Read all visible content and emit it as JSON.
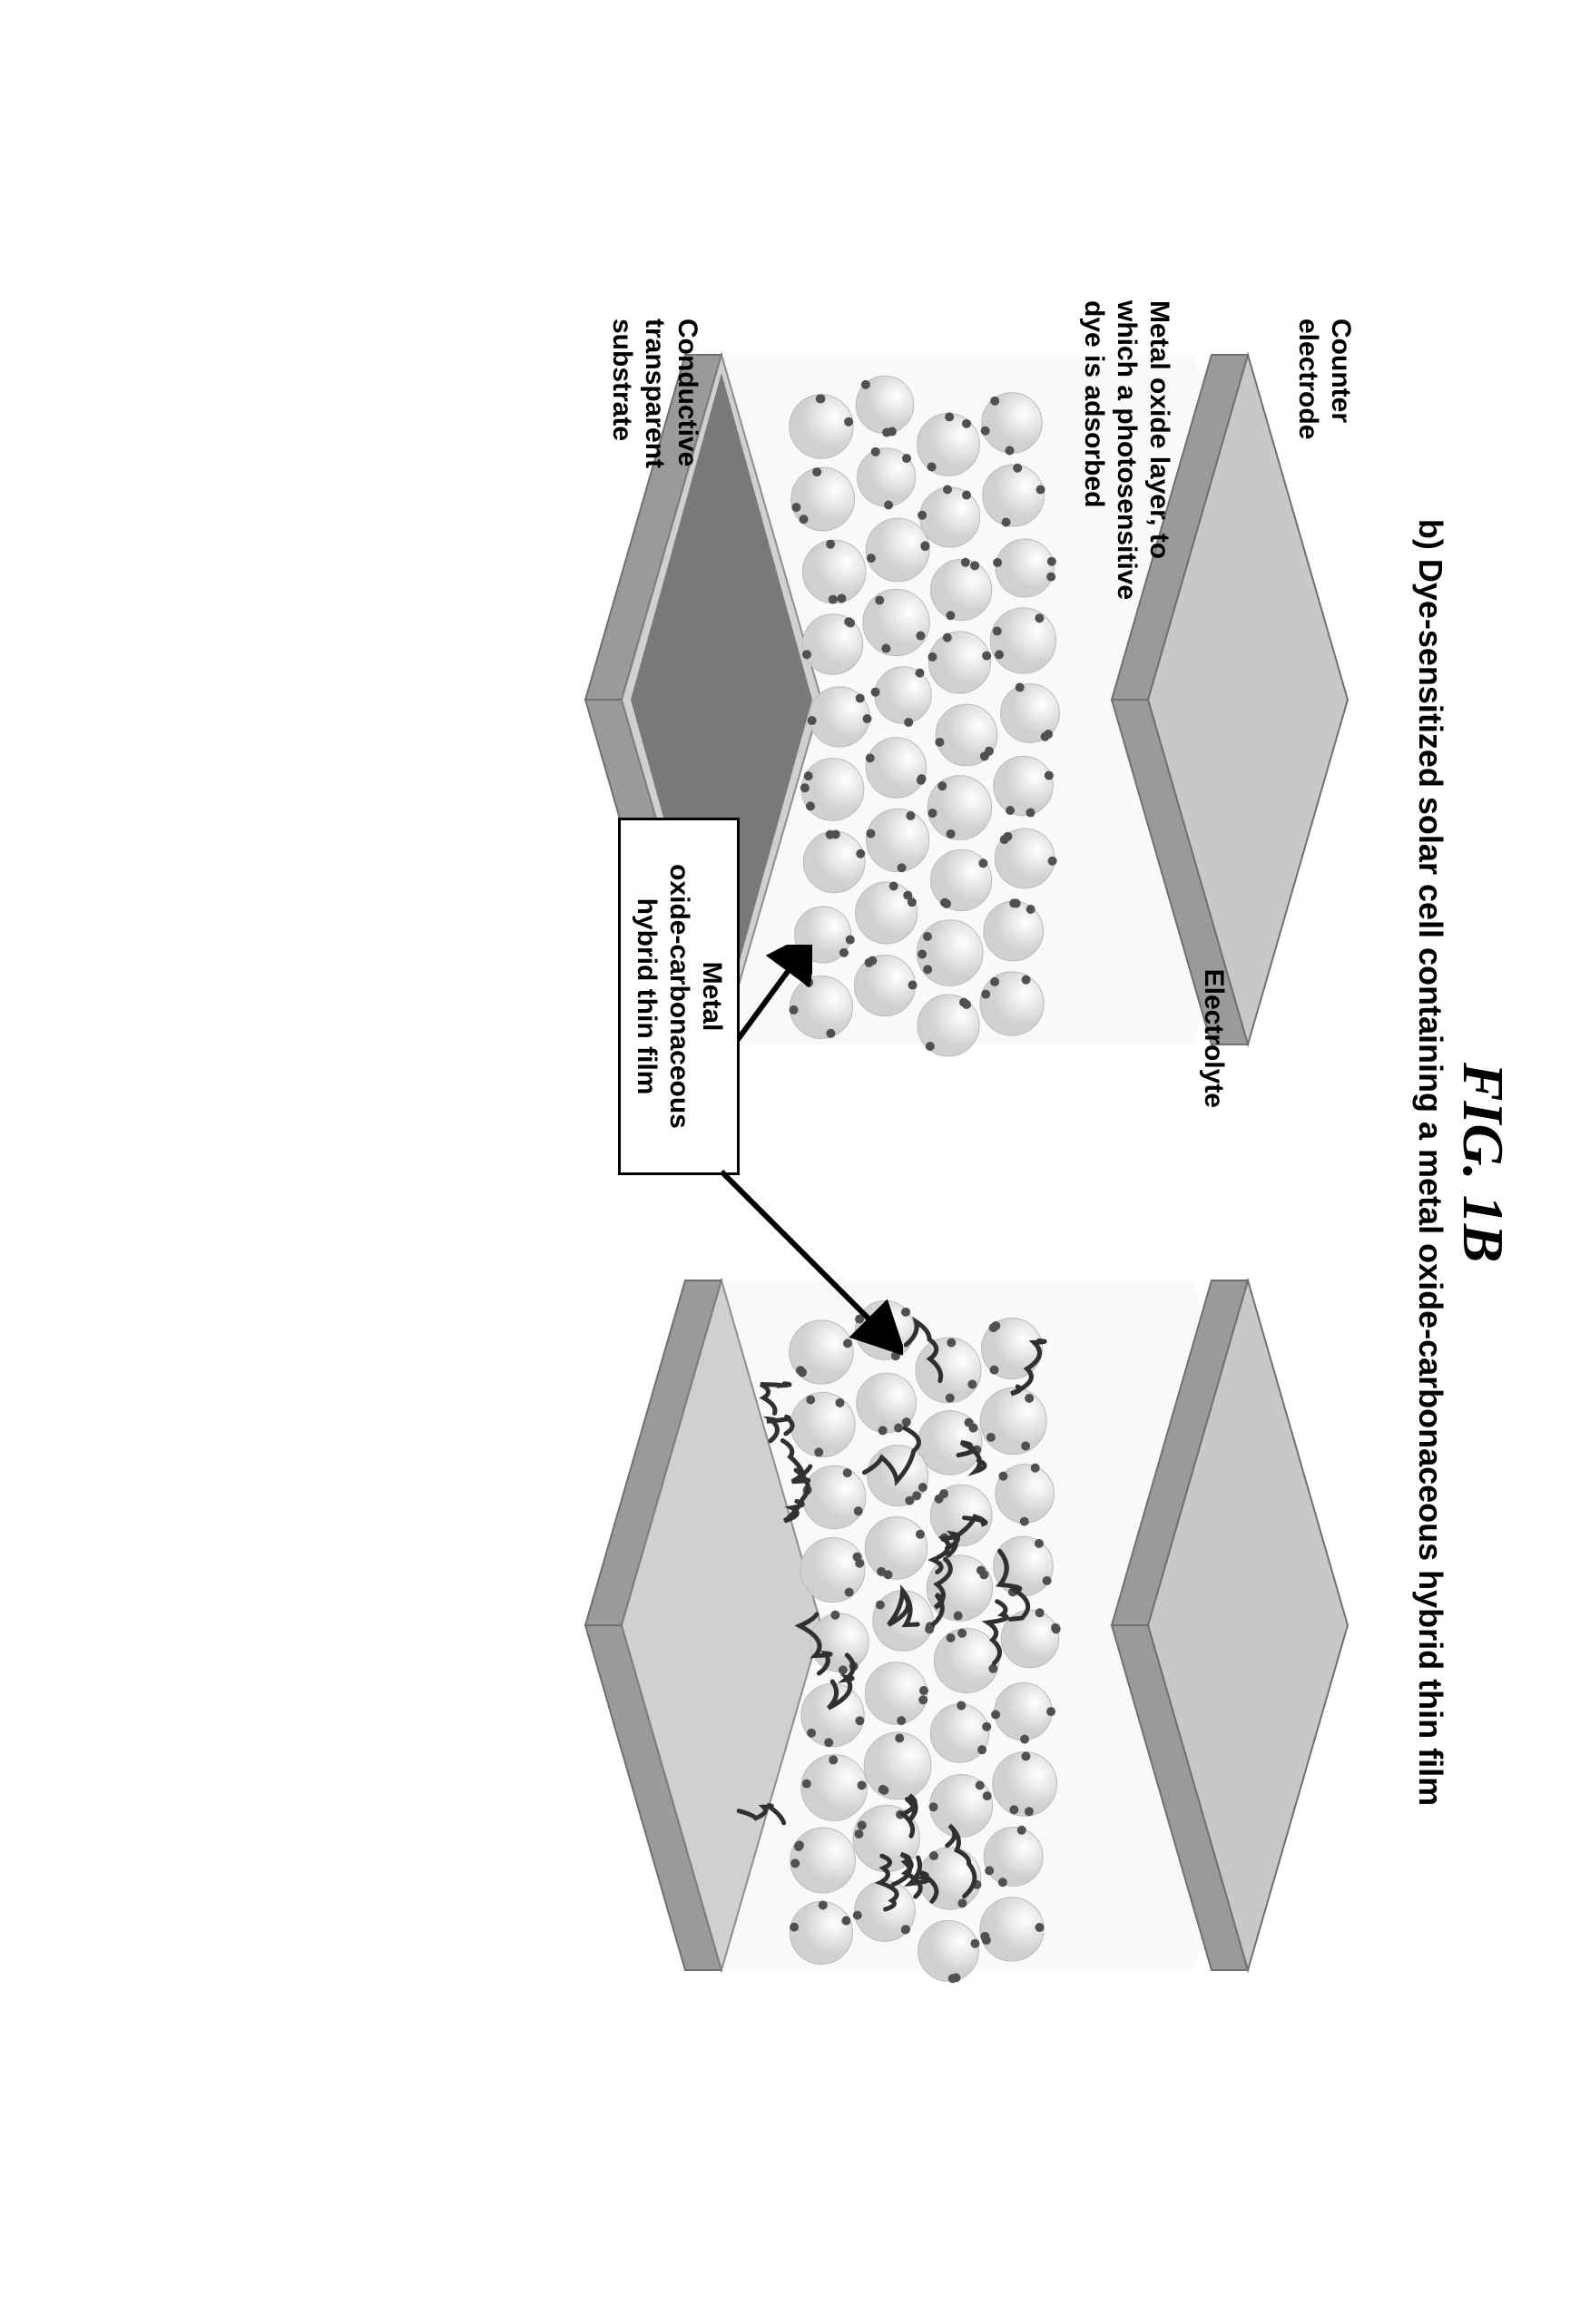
{
  "figure": {
    "title": "FIG. 1B",
    "title_fontsize": 64,
    "subtitle": "b) Dye-sensitized solar cell containing a metal oxide-carbonaceous hybrid thin film",
    "subtitle_fontsize": 36
  },
  "labels": {
    "counter_electrode": "Counter\nelectrode",
    "electrolyte": "Electrolyte",
    "metal_oxide_layer": "Metal oxide layer, to\nwhich a photosensitive\ndye is adsorbed",
    "conductive_substrate": "Conductive\ntransparent\nsubstrate",
    "hybrid_film": "Metal\noxide-carbonaceous\nhybrid thin film",
    "label_fontsize": 30
  },
  "style": {
    "plate_top": "#c8c8c8",
    "plate_side": "#9a9a9a",
    "plate_edge": "#707070",
    "electrolyte_fill": "#e8e8e8",
    "sphere_light": "#ffffff",
    "sphere_shadow": "#d0d0d0",
    "dye_dot": "#505050",
    "hybrid_layer": "#404040",
    "nanotube": "#303030",
    "background": "#ffffff",
    "sphere_rows": 4,
    "sphere_cols": 9,
    "sphere_radius": 34,
    "dye_radius": 5
  }
}
